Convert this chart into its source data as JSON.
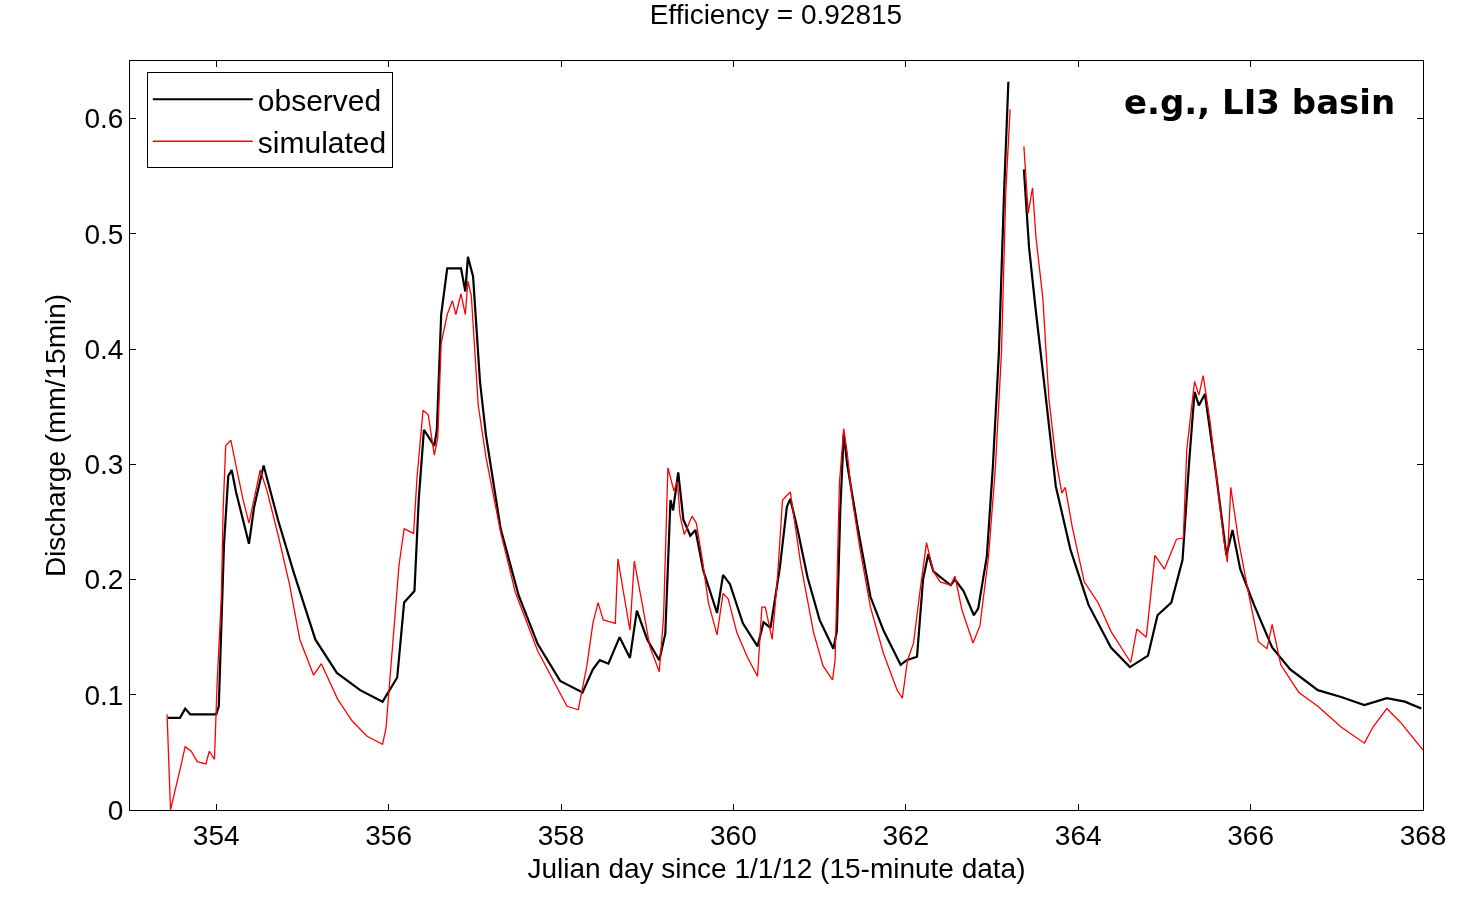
{
  "chart_data": {
    "type": "line",
    "title": "Efficiency = 0.92815",
    "xlabel": "Julian day since 1/1/12 (15-minute data)",
    "ylabel": "Discharge (mm/15min)",
    "annotations": [
      "e.g., LI3 basin"
    ],
    "xlim": [
      353,
      368
    ],
    "xticks": [
      354,
      356,
      358,
      360,
      362,
      364,
      366,
      368
    ],
    "ylim": [
      0,
      0.65
    ],
    "yticks": [
      0,
      0.1,
      0.2,
      0.3,
      0.4,
      0.5,
      0.6
    ],
    "grid": false,
    "legend": "top left",
    "marker": "none",
    "line_style": "solid",
    "series": [
      {
        "name": "observed",
        "color": "#000000",
        "x": [
          353.44,
          353.58,
          353.64,
          353.7,
          354.0,
          354.03,
          354.09,
          354.14,
          354.18,
          354.23,
          354.38,
          354.44,
          354.55,
          354.72,
          354.9,
          355.15,
          355.4,
          355.67,
          355.93,
          356.1,
          356.18,
          356.3,
          356.35,
          356.41,
          356.53,
          356.56,
          356.61,
          356.68,
          356.84,
          356.89,
          356.92,
          356.98,
          357.06,
          357.13,
          357.3,
          357.51,
          357.73,
          357.99,
          358.25,
          358.37,
          358.45,
          358.55,
          358.68,
          358.8,
          358.88,
          359.0,
          359.14,
          359.21,
          359.27,
          359.3,
          359.36,
          359.42,
          359.5,
          359.56,
          359.65,
          359.81,
          359.88,
          359.96,
          360.11,
          360.28,
          360.35,
          360.43,
          360.54,
          360.62,
          360.66,
          360.74,
          360.86,
          361.0,
          361.16,
          361.2,
          361.24,
          361.28,
          361.32,
          361.44,
          361.59,
          361.74,
          361.94,
          362.01,
          362.13,
          362.2,
          362.26,
          362.32,
          362.52,
          362.57,
          362.67,
          362.79,
          362.84,
          362.94,
          363.01,
          363.08,
          363.14,
          363.19,
          363.21,
          363.35,
          363.37,
          363.43,
          363.51,
          363.62,
          363.74,
          363.91,
          364.12,
          364.38,
          364.6,
          364.81,
          364.92,
          365.08,
          365.21,
          365.29,
          365.35,
          365.4,
          365.47,
          365.59,
          365.72,
          365.79,
          365.88,
          366.04,
          366.25,
          366.46,
          366.78,
          367.05,
          367.32,
          367.58,
          367.79,
          367.98
        ],
        "values": [
          0.08,
          0.08,
          0.088,
          0.083,
          0.083,
          0.09,
          0.23,
          0.29,
          0.295,
          0.276,
          0.231,
          0.263,
          0.299,
          0.251,
          0.206,
          0.148,
          0.119,
          0.104,
          0.094,
          0.115,
          0.18,
          0.19,
          0.27,
          0.33,
          0.316,
          0.33,
          0.43,
          0.47,
          0.47,
          0.45,
          0.48,
          0.463,
          0.372,
          0.325,
          0.244,
          0.186,
          0.144,
          0.112,
          0.102,
          0.122,
          0.13,
          0.127,
          0.15,
          0.132,
          0.173,
          0.148,
          0.13,
          0.153,
          0.269,
          0.26,
          0.293,
          0.252,
          0.238,
          0.243,
          0.208,
          0.171,
          0.204,
          0.196,
          0.162,
          0.142,
          0.163,
          0.158,
          0.211,
          0.263,
          0.27,
          0.245,
          0.202,
          0.165,
          0.14,
          0.155,
          0.26,
          0.327,
          0.3,
          0.246,
          0.185,
          0.156,
          0.126,
          0.13,
          0.133,
          0.2,
          0.222,
          0.207,
          0.195,
          0.2,
          0.19,
          0.169,
          0.175,
          0.22,
          0.298,
          0.397,
          0.536,
          0.632,
          null,
          null,
          0.556,
          0.488,
          0.432,
          0.361,
          0.281,
          0.226,
          0.178,
          0.141,
          0.124,
          0.134,
          0.169,
          0.18,
          0.217,
          0.305,
          0.363,
          0.351,
          0.361,
          0.297,
          0.221,
          0.243,
          0.209,
          0.178,
          0.141,
          0.122,
          0.104,
          0.098,
          0.091,
          0.097,
          0.094,
          0.088
        ]
      },
      {
        "name": "simulated",
        "color": "#ff0000",
        "x": [
          353.43,
          353.47,
          353.52,
          353.58,
          353.64,
          353.71,
          353.78,
          353.88,
          353.92,
          353.98,
          354.01,
          354.06,
          354.08,
          354.11,
          354.17,
          354.24,
          354.31,
          354.38,
          354.44,
          354.51,
          354.59,
          354.72,
          354.85,
          354.97,
          355.13,
          355.22,
          355.41,
          355.58,
          355.75,
          355.93,
          355.97,
          356.01,
          356.08,
          356.12,
          356.18,
          356.29,
          356.33,
          356.4,
          356.46,
          356.53,
          356.57,
          356.61,
          356.68,
          356.74,
          356.78,
          356.84,
          356.89,
          356.92,
          356.96,
          357.04,
          357.13,
          357.3,
          357.47,
          357.73,
          358.07,
          358.2,
          358.3,
          358.37,
          358.43,
          358.49,
          358.63,
          358.66,
          358.72,
          358.8,
          358.85,
          358.94,
          359.03,
          359.14,
          359.19,
          359.24,
          359.31,
          359.35,
          359.38,
          359.43,
          359.52,
          359.57,
          359.64,
          359.71,
          359.81,
          359.88,
          359.94,
          360.04,
          360.16,
          360.28,
          360.33,
          360.37,
          360.45,
          360.51,
          360.57,
          360.66,
          360.78,
          360.93,
          361.04,
          361.15,
          361.18,
          361.23,
          361.28,
          361.32,
          361.38,
          361.47,
          361.59,
          361.74,
          361.9,
          361.96,
          362.02,
          362.09,
          362.17,
          362.24,
          362.32,
          362.4,
          362.52,
          362.57,
          362.65,
          362.78,
          362.86,
          362.96,
          363.04,
          363.11,
          363.16,
          363.21,
          363.26,
          363.33,
          363.37,
          363.42,
          363.47,
          363.51,
          363.59,
          363.66,
          363.74,
          363.81,
          363.85,
          363.93,
          364.07,
          364.23,
          364.38,
          364.61,
          364.68,
          364.79,
          364.89,
          365.0,
          365.14,
          365.22,
          365.26,
          365.35,
          365.4,
          365.45,
          365.53,
          365.61,
          365.69,
          365.73,
          365.77,
          365.86,
          365.96,
          366.09,
          366.19,
          366.25,
          366.35,
          366.56,
          366.78,
          367.05,
          367.32,
          367.42,
          367.58,
          367.74,
          368.0
        ],
        "values": [
          0.083,
          0.0,
          0.016,
          0.035,
          0.055,
          0.051,
          0.042,
          0.04,
          0.051,
          0.044,
          0.109,
          0.186,
          0.26,
          0.316,
          0.321,
          0.295,
          0.27,
          0.249,
          0.27,
          0.295,
          0.277,
          0.238,
          0.196,
          0.148,
          0.117,
          0.127,
          0.096,
          0.077,
          0.064,
          0.057,
          0.071,
          0.109,
          0.174,
          0.212,
          0.244,
          0.24,
          0.289,
          0.347,
          0.343,
          0.308,
          0.323,
          0.405,
          0.43,
          0.442,
          0.43,
          0.448,
          0.43,
          0.459,
          0.446,
          0.351,
          0.306,
          0.241,
          0.189,
          0.138,
          0.09,
          0.087,
          0.125,
          0.162,
          0.18,
          0.165,
          0.162,
          0.218,
          0.191,
          0.156,
          0.216,
          0.18,
          0.142,
          0.12,
          0.168,
          0.297,
          0.277,
          0.285,
          0.256,
          0.239,
          0.255,
          0.249,
          0.217,
          0.18,
          0.152,
          0.188,
          0.183,
          0.154,
          0.133,
          0.116,
          0.176,
          0.176,
          0.148,
          0.2,
          0.269,
          0.276,
          0.214,
          0.154,
          0.125,
          0.113,
          0.13,
          0.284,
          0.331,
          0.31,
          0.269,
          0.226,
          0.176,
          0.136,
          0.104,
          0.097,
          0.13,
          0.145,
          0.193,
          0.232,
          0.207,
          0.198,
          0.195,
          0.203,
          0.174,
          0.145,
          0.16,
          0.22,
          0.298,
          0.397,
          0.536,
          0.608,
          null,
          null,
          0.576,
          0.518,
          0.54,
          0.497,
          0.444,
          0.357,
          0.305,
          0.275,
          0.28,
          0.246,
          0.198,
          0.18,
          0.155,
          0.128,
          0.157,
          0.15,
          0.221,
          0.209,
          0.235,
          0.236,
          0.313,
          0.372,
          0.36,
          0.377,
          0.337,
          0.285,
          0.234,
          0.215,
          0.28,
          0.234,
          0.194,
          0.146,
          0.14,
          0.161,
          0.126,
          0.102,
          0.09,
          0.072,
          0.058,
          0.072,
          0.088,
          0.076,
          0.052
        ]
      }
    ]
  }
}
